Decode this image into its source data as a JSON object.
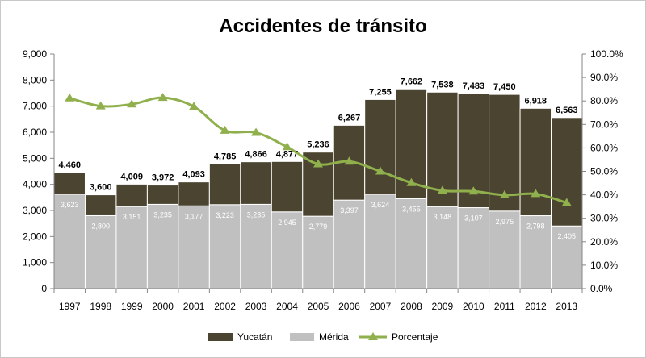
{
  "chart_data": {
    "type": "bar",
    "title": "Accidentes de tránsito",
    "categories": [
      "1997",
      "1998",
      "1999",
      "2000",
      "2001",
      "2002",
      "2003",
      "2004",
      "2005",
      "2006",
      "2007",
      "2008",
      "2009",
      "2010",
      "2011",
      "2012",
      "2013"
    ],
    "totals": [
      4460,
      3600,
      4009,
      3972,
      4093,
      4785,
      4866,
      4877,
      5236,
      6267,
      7255,
      7662,
      7538,
      7483,
      7450,
      6918,
      6563
    ],
    "total_labels": [
      "4,460",
      "3,600",
      "4,009",
      "3,972",
      "4,093",
      "4,785",
      "4,866",
      "4,877",
      "5,236",
      "6,267",
      "7,255",
      "7,662",
      "7,538",
      "7,483",
      "7,450",
      "6,918",
      "6,563"
    ],
    "series": [
      {
        "name": "Mérida",
        "type": "stacked-bar",
        "values": [
          3623,
          2800,
          3151,
          3235,
          3177,
          3223,
          3235,
          2945,
          2779,
          3397,
          3624,
          3455,
          3148,
          3107,
          2975,
          2798,
          2405
        ],
        "labels": [
          "3,623",
          "2,800",
          "3,151",
          "3,235",
          "3,177",
          "3,223",
          "3,235",
          "2,945",
          "2,779",
          "3,397",
          "3,624",
          "3,455",
          "3,148",
          "3,107",
          "2,975",
          "2,798",
          "2,405"
        ],
        "color": "#c0c0c0"
      },
      {
        "name": "Yucatán",
        "type": "stacked-bar",
        "values": [
          837,
          800,
          858,
          737,
          916,
          1562,
          1631,
          1932,
          2457,
          2870,
          3631,
          4207,
          4390,
          4376,
          4475,
          4120,
          4158
        ],
        "color": "#4b4430"
      },
      {
        "name": "Porcentaje",
        "type": "line",
        "axis": "right",
        "values": [
          81.2,
          77.8,
          78.6,
          81.4,
          77.6,
          67.4,
          66.5,
          60.4,
          53.1,
          54.2,
          50.0,
          45.1,
          41.8,
          41.5,
          39.9,
          40.4,
          36.6
        ],
        "color": "#8fb04c"
      }
    ],
    "ylim": [
      0,
      9000
    ],
    "yticks": [
      0,
      1000,
      2000,
      3000,
      4000,
      5000,
      6000,
      7000,
      8000,
      9000
    ],
    "ytick_labels": [
      "0",
      "1,000",
      "2,000",
      "3,000",
      "4,000",
      "5,000",
      "6,000",
      "7,000",
      "8,000",
      "9,000"
    ],
    "y2lim": [
      0,
      100
    ],
    "y2ticks": [
      0,
      10,
      20,
      30,
      40,
      50,
      60,
      70,
      80,
      90,
      100
    ],
    "y2tick_labels": [
      "0.0%",
      "10.0%",
      "20.0%",
      "30.0%",
      "40.0%",
      "50.0%",
      "60.0%",
      "70.0%",
      "80.0%",
      "90.0%",
      "100.0%"
    ],
    "legend": [
      "Yucatán",
      "Mérida",
      "Porcentaje"
    ],
    "legend_position": "bottom",
    "grid": false
  }
}
